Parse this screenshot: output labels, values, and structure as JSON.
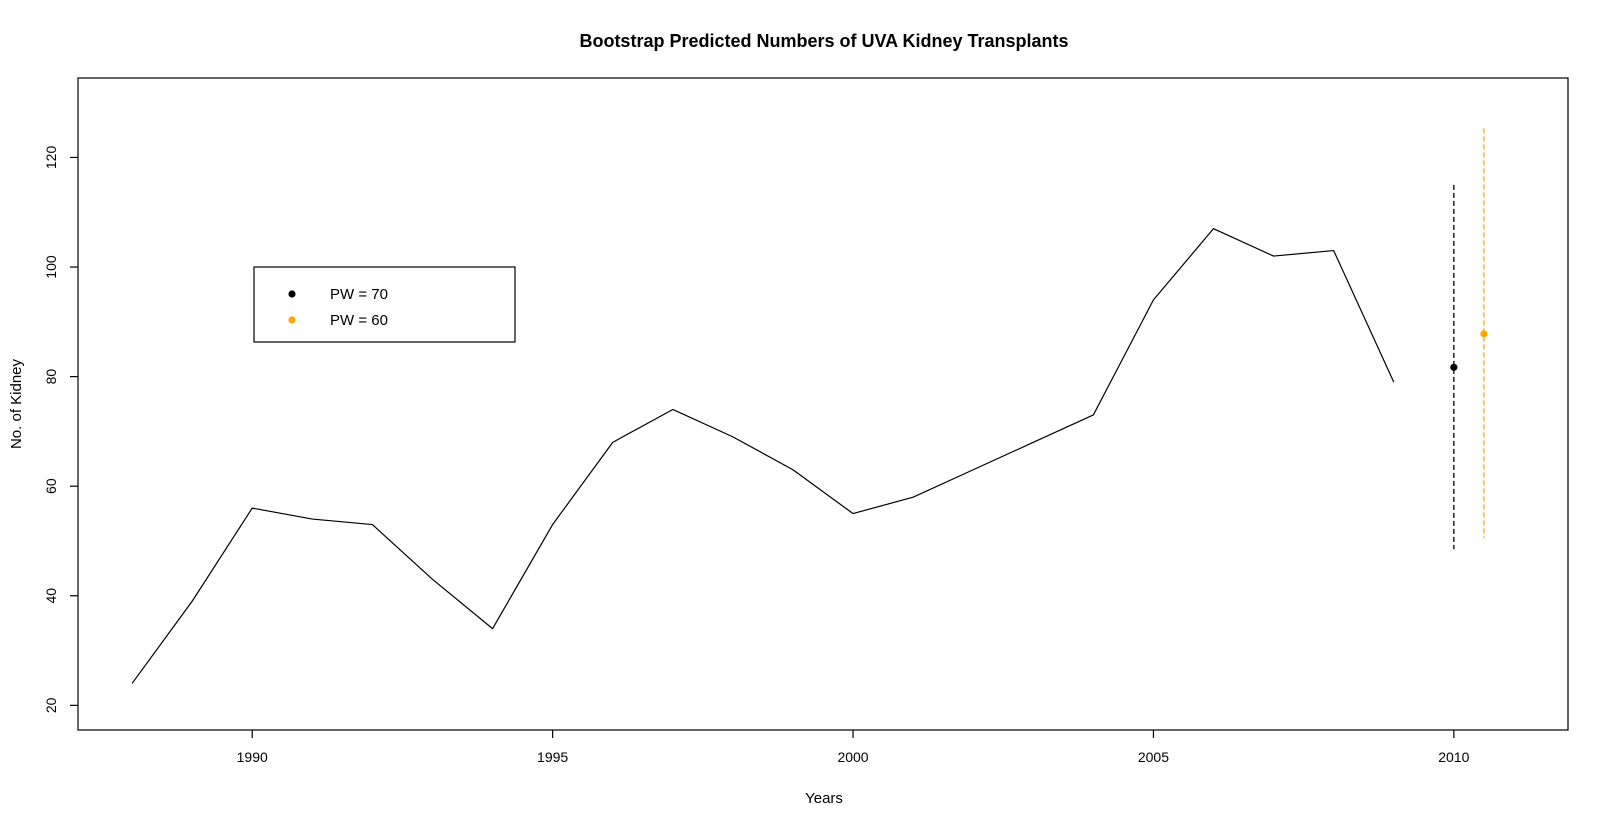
{
  "chart_data": {
    "type": "line",
    "title": "Bootstrap Predicted Numbers of UVA Kidney Transplants",
    "xlabel": "Years",
    "ylabel": "No. of Kidney",
    "xlim": [
      1987.1,
      2011.9
    ],
    "ylim": [
      15.5,
      134.5
    ],
    "grid": false,
    "legend_position": "top-left",
    "x_ticks": [
      1990,
      1995,
      2000,
      2005,
      2010
    ],
    "y_ticks": [
      20,
      40,
      60,
      80,
      100,
      120
    ],
    "series": [
      {
        "x": [
          1988,
          1989,
          1990,
          1991,
          1992,
          1993,
          1994,
          1995,
          1996,
          1997,
          1998,
          1999,
          2000,
          2001,
          2002,
          2003,
          2004,
          2005,
          2006,
          2007,
          2008,
          2009
        ],
        "values": [
          24,
          39,
          56,
          54,
          53,
          43,
          34,
          53,
          68,
          74,
          69,
          63,
          55,
          58,
          63,
          68,
          73,
          94,
          107,
          102,
          103,
          79
        ],
        "color": "#000000"
      }
    ],
    "predictions": [
      {
        "name": "PW = 70",
        "x": 2010,
        "value": 81.7,
        "lower": 48.5,
        "upper": 115,
        "color": "#000000"
      },
      {
        "name": "PW = 60",
        "x": 2010.5,
        "value": 87.8,
        "lower": 50.5,
        "upper": 125.3,
        "color": "#FFA500"
      }
    ]
  }
}
